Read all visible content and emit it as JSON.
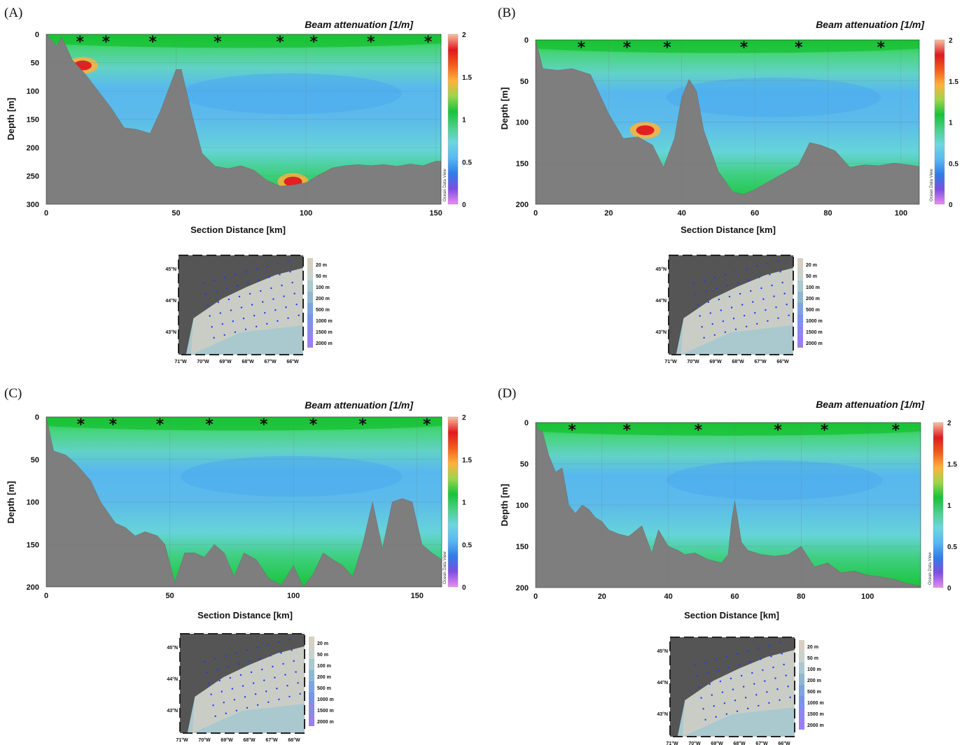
{
  "panel_labels": [
    "(A)",
    "(B)",
    "(C)",
    "(D)"
  ],
  "colorbar": {
    "ticks": [
      "2",
      "1.5",
      "1",
      "0.5",
      "0"
    ],
    "watermark": "Ocean Data View",
    "colors": [
      "#e88cf0",
      "#7c4fe0",
      "#2f7de6",
      "#5bb8f2",
      "#6ed6e0",
      "#4ccf8a",
      "#18c23a",
      "#9ed64b",
      "#ffb13b",
      "#f25c1c",
      "#e0191f",
      "#f7c0a0"
    ]
  },
  "map": {
    "lat_labels": [
      "45°N",
      "44°N",
      "43°N"
    ],
    "lon_labels": [
      "71°W",
      "70°W",
      "69°W",
      "68°W",
      "67°W",
      "66°W"
    ],
    "legend": [
      "20 m",
      "50 m",
      "100 m",
      "200 m",
      "500 m",
      "1000 m",
      "1500 m",
      "2000 m"
    ]
  },
  "chart_data": [
    {
      "type": "heatmap",
      "panel": "(A)",
      "title": "Beam attenuation [1/m]",
      "xlabel": "Section Distance [km]",
      "ylabel": "Depth [m]",
      "xlim": [
        0,
        152
      ],
      "ylim": [
        300,
        0
      ],
      "x_ticks": [
        "0",
        "50",
        "100",
        "150"
      ],
      "x_tick_values": [
        0,
        50,
        100,
        150
      ],
      "y_ticks": [
        "0",
        "50",
        "100",
        "150",
        "200",
        "250",
        "300"
      ],
      "y_tick_values": [
        0,
        50,
        100,
        150,
        200,
        250,
        300
      ],
      "color_range": [
        0,
        2
      ],
      "station_km": [
        13,
        23,
        41,
        66,
        90,
        103,
        125,
        147
      ],
      "bathymetry": {
        "x": [
          0,
          2,
          4,
          6,
          10,
          15,
          20,
          25,
          30,
          35,
          40,
          44,
          50,
          52,
          56,
          60,
          65,
          70,
          75,
          80,
          85,
          90,
          95,
          100,
          105,
          110,
          115,
          120,
          125,
          130,
          135,
          140,
          145,
          150,
          152
        ],
        "depth": [
          0,
          10,
          20,
          5,
          45,
          70,
          100,
          130,
          165,
          168,
          175,
          135,
          62,
          62,
          140,
          210,
          233,
          237,
          232,
          240,
          258,
          268,
          266,
          262,
          248,
          236,
          232,
          230,
          232,
          230,
          233,
          229,
          232,
          224,
          224
        ]
      },
      "features": [
        {
          "label": "max",
          "x": 14,
          "depth": 55,
          "value": 2.0
        },
        {
          "label": "bottom max",
          "x": 95,
          "depth": 260,
          "value": 2.0
        }
      ]
    },
    {
      "type": "heatmap",
      "panel": "(B)",
      "title": "Beam attenuation [1/m]",
      "xlabel": "Section Distance [km]",
      "ylabel": "Depth [m]",
      "xlim": [
        0,
        105
      ],
      "ylim": [
        200,
        0
      ],
      "x_ticks": [
        "0",
        "20",
        "40",
        "60",
        "80",
        "100"
      ],
      "x_tick_values": [
        0,
        20,
        40,
        60,
        80,
        100
      ],
      "y_ticks": [
        "0",
        "50",
        "100",
        "150",
        "200"
      ],
      "y_tick_values": [
        0,
        50,
        100,
        150,
        200
      ],
      "color_range": [
        0,
        2
      ],
      "station_km": [
        12.5,
        25,
        36,
        57,
        72,
        94.5
      ],
      "bathymetry": {
        "x": [
          0,
          2,
          6,
          10,
          15,
          20,
          24,
          28,
          32,
          35,
          38,
          40,
          42,
          44,
          46,
          50,
          54,
          57,
          60,
          64,
          68,
          72,
          75,
          78,
          82,
          86,
          90,
          94,
          98,
          102,
          105
        ],
        "depth": [
          0,
          35,
          37,
          35,
          42,
          90,
          120,
          118,
          128,
          155,
          120,
          70,
          48,
          62,
          110,
          160,
          185,
          188,
          182,
          172,
          162,
          152,
          125,
          128,
          135,
          155,
          152,
          153,
          150,
          152,
          154
        ]
      },
      "features": [
        {
          "label": "max",
          "x": 30,
          "depth": 110,
          "value": 2.0
        }
      ]
    },
    {
      "type": "heatmap",
      "panel": "(C)",
      "title": "Beam attenuation [1/m]",
      "xlabel": "Section Distance [km]",
      "ylabel": "Depth [m]",
      "xlim": [
        0,
        160
      ],
      "ylim": [
        200,
        0
      ],
      "x_ticks": [
        "0",
        "50",
        "100",
        "150"
      ],
      "x_tick_values": [
        0,
        50,
        100,
        150
      ],
      "y_ticks": [
        "0",
        "50",
        "100",
        "150",
        "200"
      ],
      "y_tick_values": [
        0,
        50,
        100,
        150,
        200
      ],
      "color_range": [
        0,
        2
      ],
      "station_km": [
        14,
        27,
        46,
        66,
        88,
        108,
        128,
        154
      ],
      "bathymetry": {
        "x": [
          0,
          3,
          8,
          12,
          18,
          22,
          28,
          32,
          36,
          40,
          45,
          48,
          52,
          56,
          60,
          64,
          68,
          72,
          76,
          80,
          85,
          90,
          95,
          100,
          104,
          108,
          112,
          116,
          120,
          124,
          128,
          132,
          136,
          140,
          144,
          148,
          152,
          156,
          160
        ],
        "depth": [
          0,
          40,
          45,
          55,
          75,
          100,
          125,
          130,
          140,
          135,
          140,
          150,
          195,
          160,
          160,
          165,
          150,
          160,
          188,
          160,
          168,
          190,
          198,
          175,
          200,
          185,
          160,
          168,
          175,
          188,
          150,
          100,
          155,
          100,
          96,
          100,
          150,
          160,
          168
        ]
      },
      "features": []
    },
    {
      "type": "heatmap",
      "panel": "(D)",
      "title": "Beam attenuation [1/m]",
      "xlabel": "Section Distance [km]",
      "ylabel": "Depth [m]",
      "xlim": [
        0,
        116
      ],
      "ylim": [
        200,
        0
      ],
      "x_ticks": [
        "0",
        "20",
        "40",
        "60",
        "80",
        "100"
      ],
      "x_tick_values": [
        0,
        20,
        40,
        60,
        80,
        100
      ],
      "y_ticks": [
        "0",
        "50",
        "100",
        "150",
        "200"
      ],
      "y_tick_values": [
        0,
        50,
        100,
        150,
        200
      ],
      "color_range": [
        0,
        2
      ],
      "station_km": [
        11,
        27.5,
        49,
        73,
        87,
        108.5
      ],
      "bathymetry": {
        "x": [
          0,
          1,
          2,
          4,
          6,
          8,
          10,
          12,
          14,
          16,
          18,
          20,
          22,
          25,
          28,
          32,
          35,
          37,
          40,
          43,
          45,
          48,
          52,
          56,
          58,
          59,
          60,
          62,
          64,
          68,
          72,
          76,
          80,
          84,
          88,
          92,
          96,
          100,
          104,
          108,
          112,
          116
        ],
        "depth": [
          0,
          10,
          10,
          40,
          60,
          55,
          100,
          110,
          100,
          105,
          115,
          120,
          130,
          135,
          138,
          125,
          158,
          130,
          150,
          155,
          160,
          158,
          166,
          170,
          160,
          120,
          95,
          145,
          155,
          160,
          162,
          160,
          150,
          175,
          170,
          182,
          180,
          185,
          187,
          190,
          195,
          198
        ]
      },
      "features": []
    }
  ]
}
